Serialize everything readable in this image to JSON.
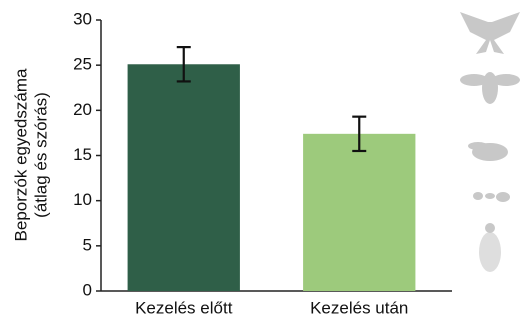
{
  "chart_data": {
    "type": "bar",
    "ylabel": [
      "Beporzók egyedszáma",
      "(átlag és szórás)"
    ],
    "categories": [
      "Kezelés előtt",
      "Kezelés után"
    ],
    "values": [
      25.1,
      17.4
    ],
    "errors": [
      1.9,
      1.9
    ],
    "colors": [
      "#2f5f48",
      "#9dca7c"
    ],
    "ylim": [
      0,
      30
    ],
    "yticks": [
      0,
      5,
      10,
      15,
      20,
      25,
      30
    ],
    "grid": false
  }
}
